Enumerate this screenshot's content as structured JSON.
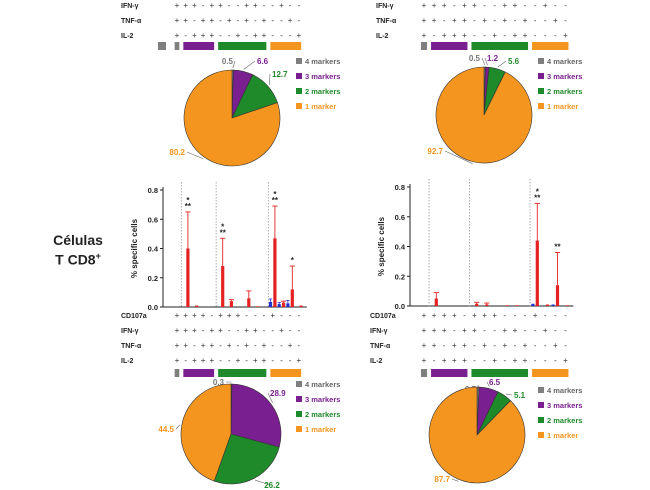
{
  "side_label": {
    "line1": "Células",
    "line2": "T CD8",
    "superscript": "+"
  },
  "colors": {
    "four": "#7f7f7f",
    "three": "#7a1f8f",
    "two": "#1f8a2a",
    "one": "#f4951f",
    "bar_red": "#e52222",
    "bar_blue": "#2233cc",
    "axis": "#222222",
    "divider": "#9a9a9a"
  },
  "markers": {
    "rows_full": [
      "CD107a",
      "IFN-γ",
      "TNF-α",
      "IL-2"
    ],
    "rows_top": [
      "IFN-γ",
      "TNF-α",
      "IL-2"
    ],
    "combinations": [
      [
        "+",
        "+",
        "+",
        "+"
      ],
      [
        "+",
        "+",
        "+",
        "-"
      ],
      [
        "+",
        "+",
        "-",
        "+"
      ],
      [
        "+",
        "-",
        "+",
        "+"
      ],
      [
        "-",
        "+",
        "+",
        "+"
      ],
      [
        "+",
        "+",
        "-",
        "-"
      ],
      [
        "+",
        "-",
        "+",
        "-"
      ],
      [
        "+",
        "-",
        "-",
        "+"
      ],
      [
        "-",
        "+",
        "+",
        "-"
      ],
      [
        "-",
        "+",
        "-",
        "+"
      ],
      [
        "-",
        "-",
        "+",
        "+"
      ],
      [
        "+",
        "-",
        "-",
        "-"
      ],
      [
        "-",
        "+",
        "-",
        "-"
      ],
      [
        "-",
        "-",
        "+",
        "-"
      ],
      [
        "-",
        "-",
        "-",
        "+"
      ]
    ]
  },
  "legend": [
    "4 markers",
    "3 markers",
    "2 markers",
    "1 marker"
  ],
  "chart_data": [
    {
      "type": "pie",
      "panel": "top-left",
      "slices": [
        {
          "label": "4 markers",
          "value": 0.5
        },
        {
          "label": "3 markers",
          "value": 6.6
        },
        {
          "label": "2 markers",
          "value": 12.7
        },
        {
          "label": "1 marker",
          "value": 80.2
        }
      ]
    },
    {
      "type": "pie",
      "panel": "top-right",
      "slices": [
        {
          "label": "4 markers",
          "value": 0.5
        },
        {
          "label": "3 markers",
          "value": 1.2
        },
        {
          "label": "2 markers",
          "value": 5.6
        },
        {
          "label": "1 marker",
          "value": 92.7
        }
      ]
    },
    {
      "type": "bar",
      "panel": "middle-left",
      "ylabel": "% specific cells",
      "ylim": [
        0,
        0.8
      ],
      "yticks": [
        "0.0",
        "0.2",
        "0.4",
        "0.6",
        "0.8"
      ],
      "series": [
        {
          "color": "red",
          "values": [
            0,
            0.4,
            0.01,
            0,
            0,
            0.28,
            0.04,
            0,
            0.06,
            0.005,
            0,
            0.47,
            0.03,
            0.12,
            0.01
          ],
          "errors": [
            0,
            0.25,
            0,
            0,
            0,
            0.19,
            0.01,
            0,
            0.05,
            0,
            0,
            0.22,
            0.01,
            0.16,
            0
          ]
        },
        {
          "color": "blue",
          "values": [
            0,
            0,
            0,
            0,
            0,
            0,
            0,
            0,
            0,
            0,
            0,
            0.035,
            0.02,
            0.025,
            0
          ],
          "errors": [
            0,
            0,
            0,
            0,
            0,
            0,
            0,
            0,
            0,
            0,
            0,
            0.02,
            0.01,
            0.02,
            0
          ]
        }
      ],
      "annotations": [
        {
          "bar": 1,
          "text": "*\n**"
        },
        {
          "bar": 5,
          "text": "*\n**"
        },
        {
          "bar": 11,
          "text": "*\n**"
        },
        {
          "bar": 13,
          "text": "*"
        }
      ]
    },
    {
      "type": "bar",
      "panel": "middle-right",
      "ylabel": "% specific cells",
      "ylim": [
        0,
        0.8
      ],
      "yticks": [
        "0.0",
        "0.2",
        "0.4",
        "0.6",
        "0.8"
      ],
      "series": [
        {
          "color": "red",
          "values": [
            0,
            0.05,
            0,
            0,
            0,
            0.015,
            0.01,
            0,
            0.005,
            0.005,
            0,
            0.44,
            0.01,
            0.14,
            0.005
          ],
          "errors": [
            0,
            0.04,
            0,
            0,
            0,
            0.01,
            0.01,
            0,
            0,
            0,
            0,
            0.25,
            0,
            0.22,
            0
          ]
        },
        {
          "color": "blue",
          "values": [
            0,
            0,
            0,
            0,
            0,
            0,
            0,
            0,
            0,
            0,
            0,
            0.015,
            0,
            0.01,
            0
          ],
          "errors": [
            0,
            0,
            0,
            0,
            0,
            0,
            0,
            0,
            0,
            0,
            0,
            0,
            0,
            0,
            0
          ]
        }
      ],
      "annotations": [
        {
          "bar": 11,
          "text": "*\n**"
        },
        {
          "bar": 13,
          "text": "**"
        }
      ]
    },
    {
      "type": "pie",
      "panel": "bottom-left",
      "slices": [
        {
          "label": "4 markers",
          "value": 0.3
        },
        {
          "label": "3 markers",
          "value": 28.9
        },
        {
          "label": "2 markers",
          "value": 26.2
        },
        {
          "label": "1 marker",
          "value": 44.5
        }
      ]
    },
    {
      "type": "pie",
      "panel": "bottom-right",
      "slices": [
        {
          "label": "4 markers",
          "value": 0.7
        },
        {
          "label": "3 markers",
          "value": 6.5
        },
        {
          "label": "2 markers",
          "value": 5.1
        },
        {
          "label": "1 marker",
          "value": 87.7
        }
      ]
    }
  ]
}
